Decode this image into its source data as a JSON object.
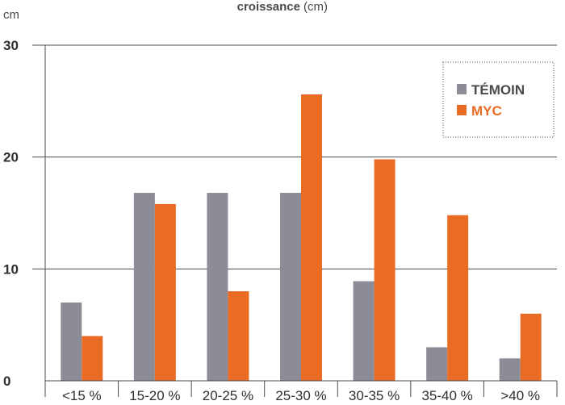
{
  "chart_data": {
    "type": "bar",
    "title": "croissance",
    "title_unit": "(cm)",
    "ylabel": "cm",
    "categories": [
      "<15 %",
      "15-20 %",
      "20-25 %",
      "25-30 %",
      "30-35 %",
      "35-40 %",
      ">40 %"
    ],
    "series": [
      {
        "name": "TÉMOIN",
        "color": "#8c8c96",
        "values": [
          7,
          16.8,
          16.8,
          16.8,
          8.9,
          3,
          2
        ]
      },
      {
        "name": "MYC",
        "color": "#ea6b24",
        "values": [
          4,
          15.8,
          8,
          25.6,
          19.8,
          14.8,
          6
        ]
      }
    ],
    "yticks": [
      0,
      10,
      20,
      30
    ],
    "ylim": [
      0,
      30
    ],
    "grid": "horizontal",
    "legend_position": "top-right"
  }
}
